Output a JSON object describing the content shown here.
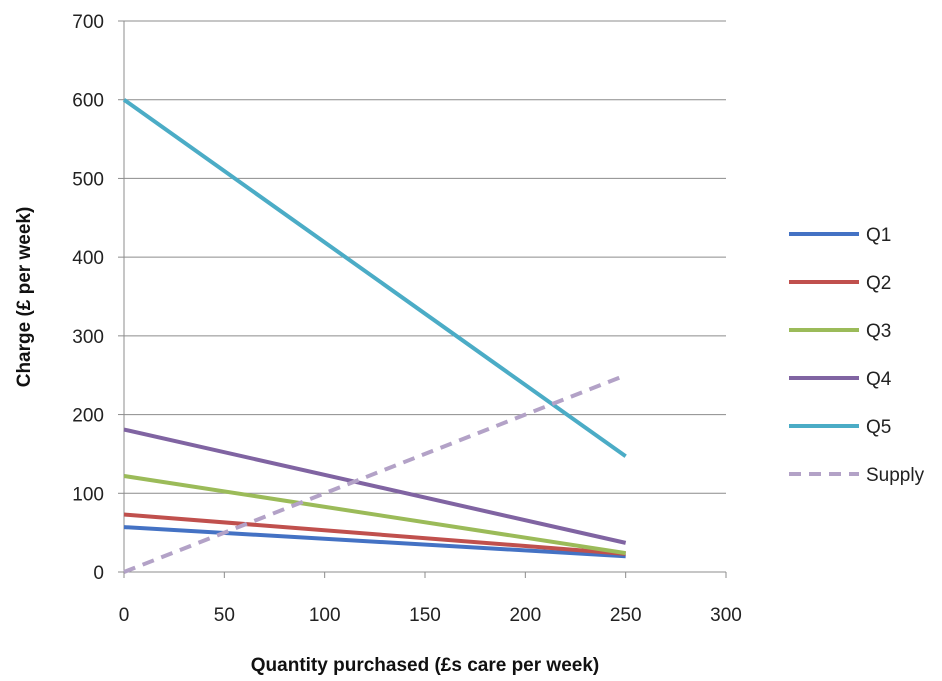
{
  "chart_data": {
    "type": "line",
    "title": "",
    "xlabel": "Quantity purchased (£s care per week)",
    "ylabel": "Charge (£ per week)",
    "xlim": [
      0,
      300
    ],
    "ylim": [
      0,
      700
    ],
    "xticks": [
      0,
      50,
      100,
      150,
      200,
      250,
      300
    ],
    "yticks": [
      0,
      100,
      200,
      300,
      400,
      500,
      600,
      700
    ],
    "grid": "horizontal",
    "legend_position": "right",
    "series": [
      {
        "name": "Q1",
        "color": "#4472C4",
        "dashed": false,
        "x": [
          0,
          250
        ],
        "y": [
          57,
          20
        ]
      },
      {
        "name": "Q2",
        "color": "#C0504D",
        "dashed": false,
        "x": [
          0,
          250
        ],
        "y": [
          73,
          23
        ]
      },
      {
        "name": "Q3",
        "color": "#9BBB59",
        "dashed": false,
        "x": [
          0,
          250
        ],
        "y": [
          122,
          24
        ]
      },
      {
        "name": "Q4",
        "color": "#8064A2",
        "dashed": false,
        "x": [
          0,
          250
        ],
        "y": [
          181,
          37
        ]
      },
      {
        "name": "Q5",
        "color": "#4BACC6",
        "dashed": false,
        "x": [
          0,
          250
        ],
        "y": [
          600,
          147
        ]
      },
      {
        "name": "Supply",
        "color": "#B3A2C7",
        "dashed": true,
        "x": [
          0,
          250
        ],
        "y": [
          0,
          250
        ]
      }
    ]
  }
}
